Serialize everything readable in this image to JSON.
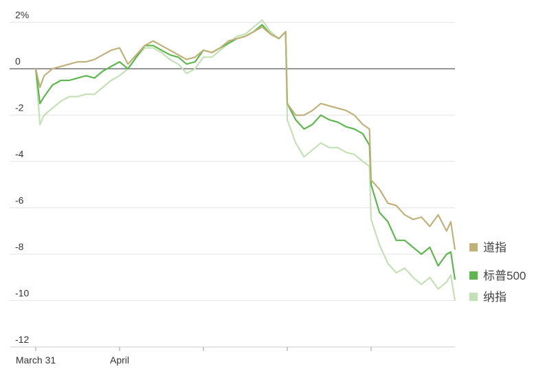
{
  "chart_data": {
    "type": "line",
    "x": [
      0,
      0.05,
      0.1,
      0.2,
      0.3,
      0.4,
      0.5,
      0.6,
      0.7,
      0.8,
      0.9,
      1.0,
      1.1,
      1.2,
      1.3,
      1.4,
      1.5,
      1.6,
      1.7,
      1.8,
      1.9,
      2.0,
      2.1,
      2.2,
      2.3,
      2.4,
      2.5,
      2.6,
      2.7,
      2.8,
      2.9,
      2.98,
      3.0,
      3.1,
      3.2,
      3.3,
      3.4,
      3.5,
      3.6,
      3.7,
      3.8,
      3.9,
      3.98,
      4.0,
      4.1,
      4.2,
      4.3,
      4.4,
      4.5,
      4.6,
      4.7,
      4.8,
      4.9,
      4.95,
      5.0
    ],
    "series": [
      {
        "name": "道指",
        "color": "#bfb179",
        "values": [
          0,
          -0.8,
          -0.3,
          0,
          0.1,
          0.2,
          0.3,
          0.3,
          0.4,
          0.6,
          0.8,
          0.9,
          0.2,
          0.6,
          1.0,
          1.2,
          1.0,
          0.8,
          0.6,
          0.4,
          0.5,
          0.8,
          0.7,
          0.9,
          1.2,
          1.3,
          1.4,
          1.6,
          1.8,
          1.5,
          1.3,
          1.6,
          -1.5,
          -2.0,
          -2.0,
          -1.8,
          -1.5,
          -1.6,
          -1.7,
          -1.8,
          -2.0,
          -2.4,
          -2.6,
          -4.8,
          -5.2,
          -5.8,
          -5.9,
          -6.3,
          -6.5,
          -6.4,
          -6.8,
          -6.3,
          -7.0,
          -6.6,
          -7.8
        ]
      },
      {
        "name": "标普500",
        "color": "#5cb84c",
        "values": [
          0,
          -1.5,
          -1.2,
          -0.7,
          -0.5,
          -0.5,
          -0.4,
          -0.3,
          -0.4,
          -0.1,
          0.1,
          0.3,
          0,
          0.5,
          1.0,
          1.0,
          0.8,
          0.6,
          0.5,
          0.2,
          0.3,
          0.8,
          0.7,
          0.9,
          1.1,
          1.3,
          1.4,
          1.6,
          1.9,
          1.5,
          1.3,
          1.6,
          -1.5,
          -2.2,
          -2.6,
          -2.4,
          -2.0,
          -2.2,
          -2.3,
          -2.5,
          -2.6,
          -2.8,
          -3.3,
          -5.0,
          -6.2,
          -6.6,
          -7.4,
          -7.4,
          -7.7,
          -8.0,
          -7.7,
          -8.5,
          -8.0,
          -7.9,
          -9.1
        ]
      },
      {
        "name": "纳指",
        "color": "#c3e1b5",
        "values": [
          0,
          -2.4,
          -2.0,
          -1.7,
          -1.4,
          -1.2,
          -1.2,
          -1.1,
          -1.1,
          -0.8,
          -0.5,
          -0.3,
          0,
          0.5,
          0.9,
          0.9,
          0.7,
          0.4,
          0.2,
          -0.2,
          0,
          0.5,
          0.5,
          0.8,
          1.1,
          1.4,
          1.5,
          1.8,
          2.1,
          1.6,
          1.3,
          1.6,
          -2.2,
          -3.2,
          -3.8,
          -3.5,
          -3.2,
          -3.4,
          -3.4,
          -3.6,
          -3.7,
          -4.0,
          -4.2,
          -6.5,
          -7.6,
          -8.4,
          -8.8,
          -8.6,
          -9.0,
          -9.3,
          -9.0,
          -9.5,
          -9.2,
          -8.9,
          -10.0
        ]
      }
    ],
    "xlim": [
      0,
      5
    ],
    "xticks": [
      {
        "value": 0,
        "label": "March 31"
      },
      {
        "value": 1,
        "label": "April"
      },
      {
        "value": 2,
        "label": null
      },
      {
        "value": 3,
        "label": null
      },
      {
        "value": 4,
        "label": null
      }
    ],
    "ylim": [
      -12,
      2
    ],
    "yticks": [
      {
        "value": 2,
        "label": "2%"
      },
      0,
      -2,
      -4,
      -6,
      -8,
      -10,
      -12
    ],
    "grid": true
  }
}
